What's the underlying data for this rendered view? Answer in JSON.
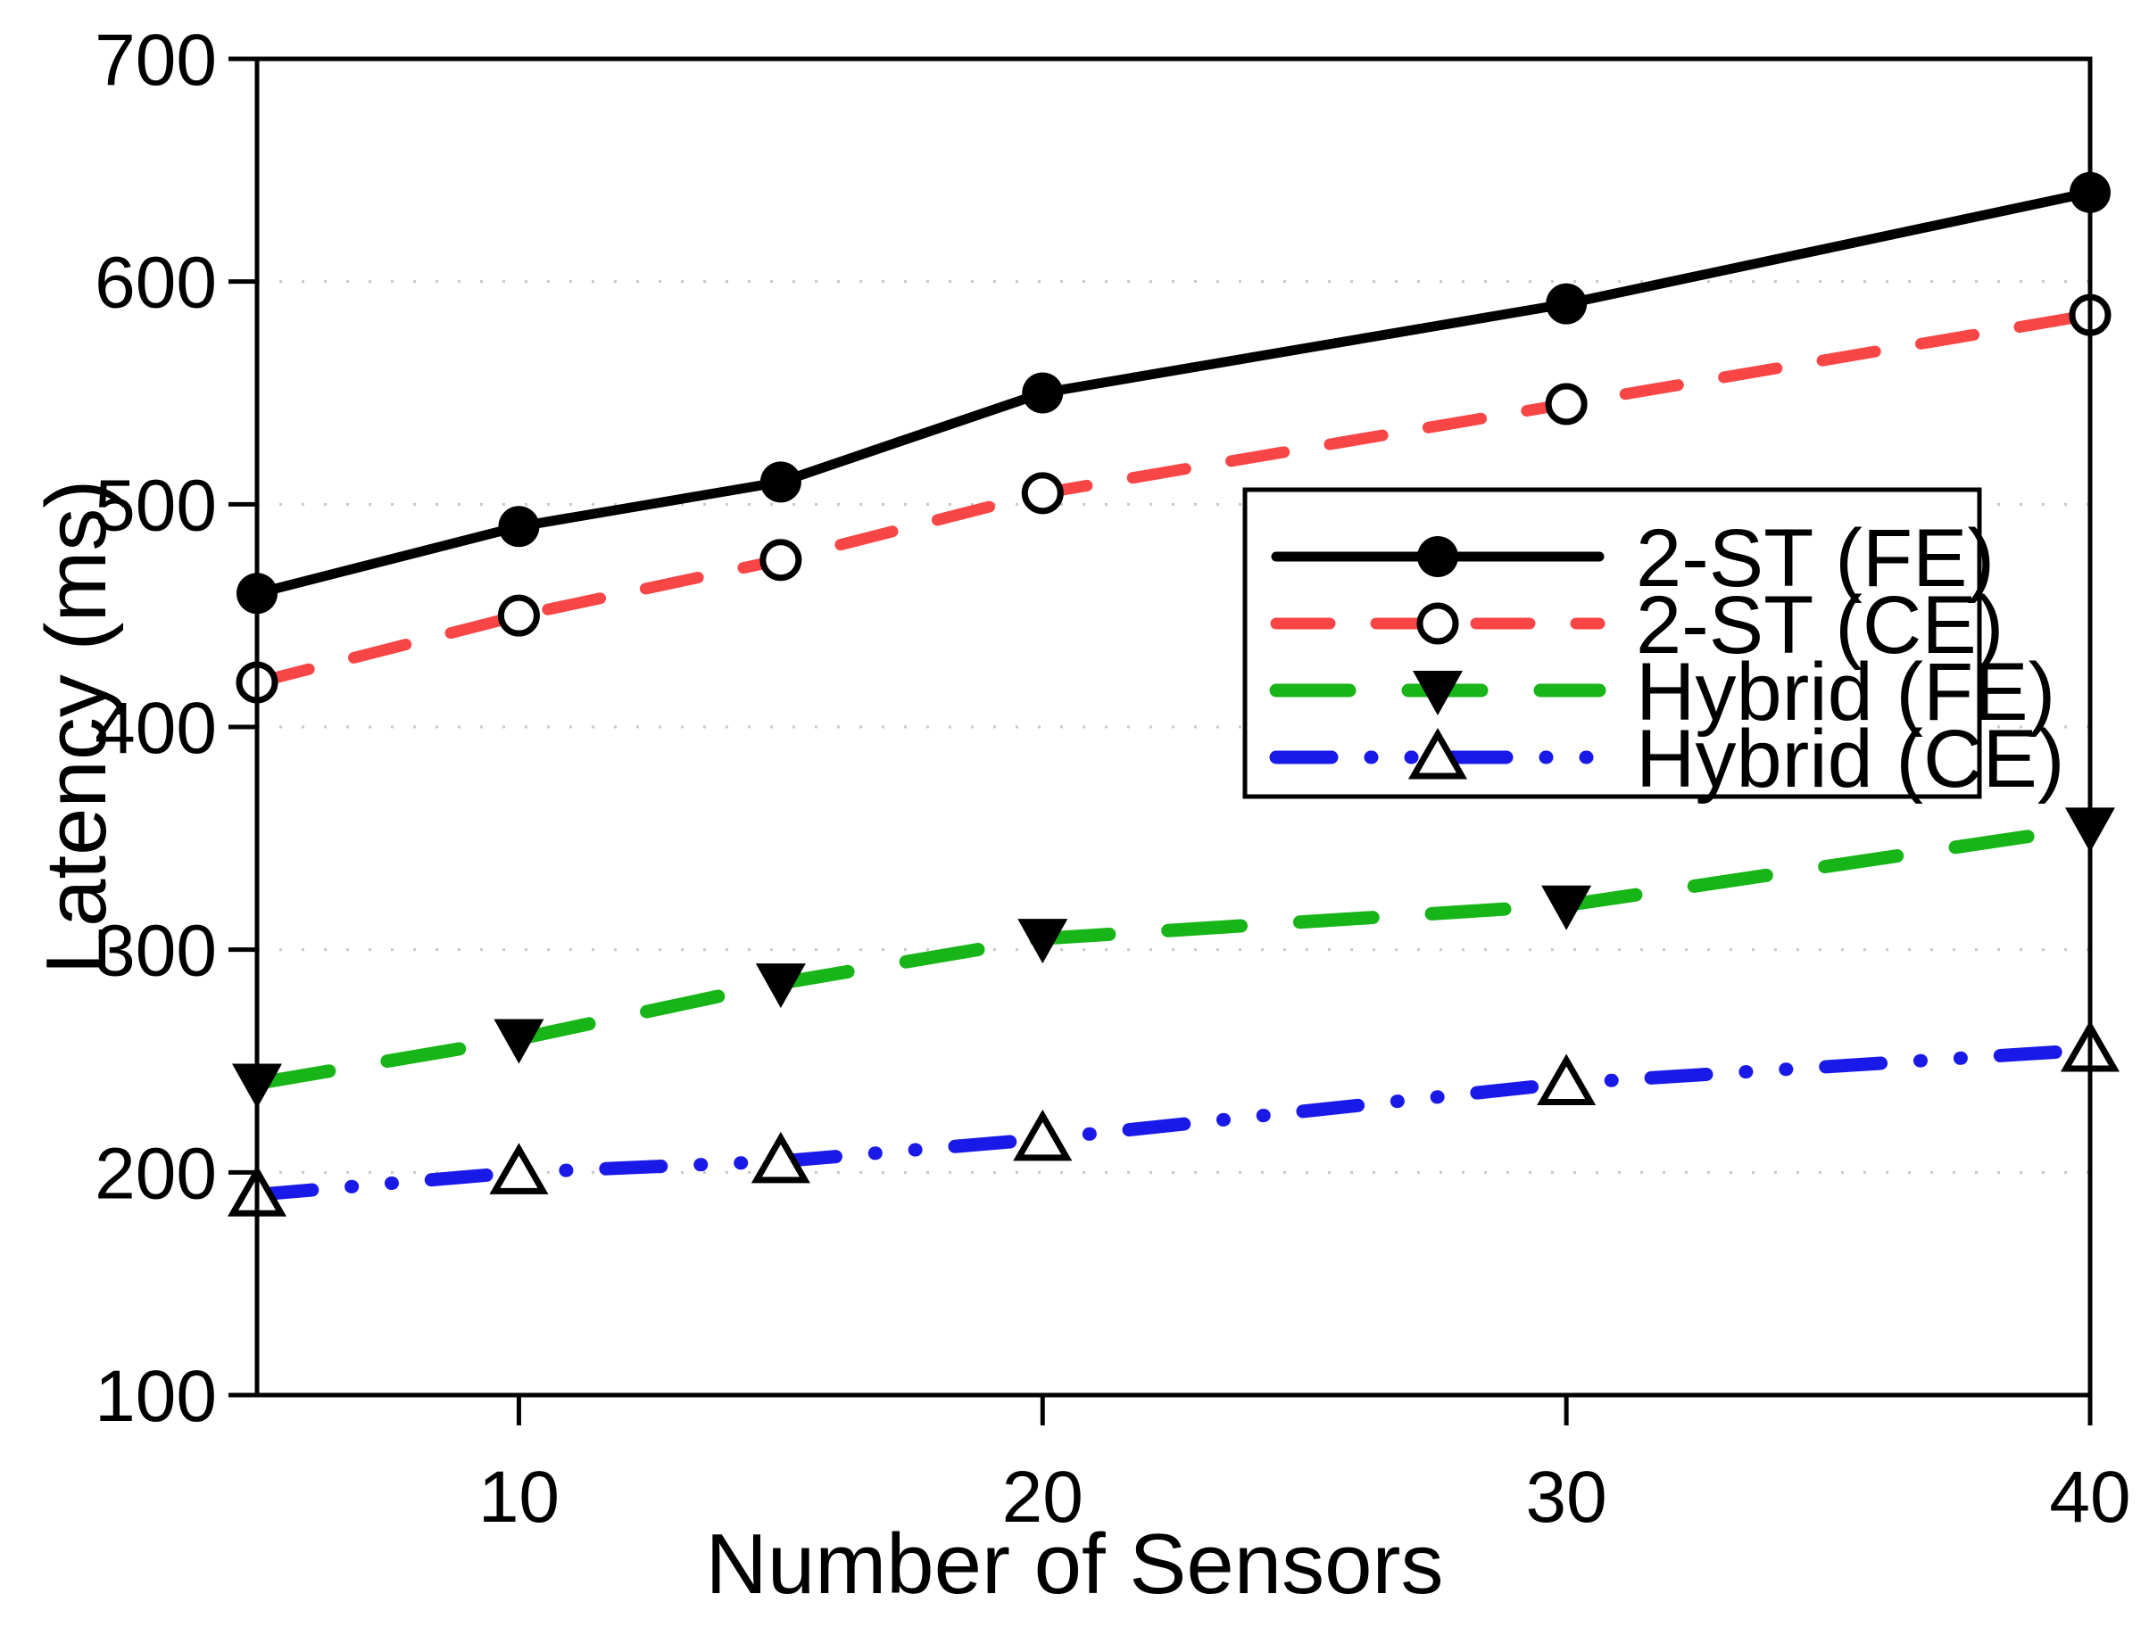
{
  "chart_data": {
    "type": "line",
    "title": "",
    "xlabel": "Number of Sensors",
    "ylabel": "Latency (ms)",
    "x": [
      5,
      10,
      15,
      20,
      30,
      40
    ],
    "xlim": [
      5,
      40
    ],
    "ylim": [
      100,
      700
    ],
    "xticks": [
      10,
      20,
      30,
      40
    ],
    "yticks": [
      700,
      600,
      500,
      400,
      300,
      200,
      100
    ],
    "grid": "horizontal-dotted",
    "gridline_color": "#c8c8c8",
    "legend_position": "upper-right-inside",
    "series": [
      {
        "name": "2-ST (FE)",
        "values": [
          460,
          490,
          510,
          550,
          590,
          640
        ],
        "color": "#000000",
        "line_style": "solid",
        "marker": "filled-circle"
      },
      {
        "name": "2-ST (CE)",
        "values": [
          420,
          450,
          475,
          505,
          545,
          585
        ],
        "color": "#F84646",
        "line_style": "dashed",
        "marker": "open-circle"
      },
      {
        "name": "Hybrid (FE)",
        "values": [
          240,
          260,
          285,
          305,
          320,
          355
        ],
        "color": "#17B517",
        "line_style": "long-dash",
        "marker": "filled-triangle-down"
      },
      {
        "name": "Hybrid (CE)",
        "values": [
          190,
          200,
          205,
          215,
          240,
          255
        ],
        "color": "#1A1AE8",
        "line_style": "dash-dot-dot",
        "marker": "open-triangle-up"
      }
    ]
  }
}
